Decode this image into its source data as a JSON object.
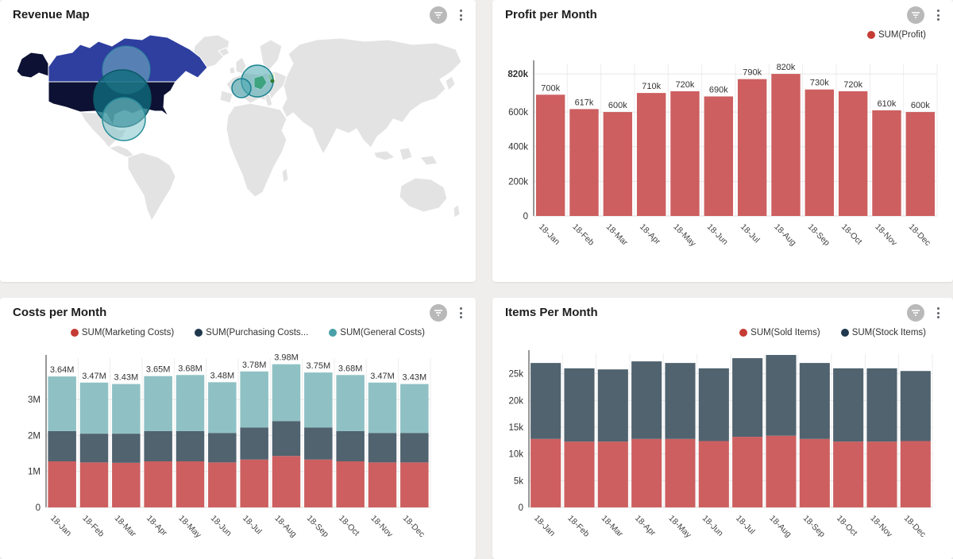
{
  "app": {
    "background": "#efeeec",
    "card_bg": "#ffffff"
  },
  "panels": [
    {
      "id": "revenue-map",
      "title": "Revenue Map"
    },
    {
      "id": "profit",
      "title": "Profit per Month",
      "legend": [
        {
          "label": "SUM(Profit)",
          "color": "#c53c35"
        }
      ]
    },
    {
      "id": "costs",
      "title": "Costs per Month",
      "legend": [
        {
          "label": "SUM(Marketing Costs)",
          "color": "#c53c35"
        },
        {
          "label": "SUM(Purchasing Costs...",
          "color": "#20384e"
        },
        {
          "label": "SUM(General Costs)",
          "color": "#4aa0a8"
        }
      ]
    },
    {
      "id": "items",
      "title": "Items Per Month",
      "legend": [
        {
          "label": "SUM(Sold Items)",
          "color": "#c53c35"
        },
        {
          "label": "SUM(Stock Items)",
          "color": "#20384e"
        }
      ]
    }
  ],
  "map": {
    "colors": {
      "land": "#e3e3e3",
      "border": "#ffffff",
      "usa": "#0d1133",
      "canada": "#2e3f9f",
      "germany": "#2f9e44",
      "poland": "#cde39b",
      "bubble_dark": "#0f6b7d",
      "bubble_light": "#7fc4cb",
      "bubble_mid": "#4aa7b0",
      "bubble_stroke": "#17818f",
      "dot_green": "#2f7a33"
    },
    "highlighted_regions": [
      "United States",
      "Canada",
      "Germany"
    ],
    "bubble_locations": [
      "Central USA",
      "Southern USA",
      "Hudson Bay Canada",
      "Central Europe",
      "France"
    ]
  },
  "chart_data": [
    {
      "id": "profit",
      "type": "bar",
      "title": "Profit per Month",
      "categories": [
        "18-Jan",
        "18-Feb",
        "18-Mar",
        "18-Apr",
        "18-May",
        "18-Jun",
        "18-Jul",
        "18-Aug",
        "18-Sep",
        "18-Oct",
        "18-Nov",
        "18-Dec"
      ],
      "series": [
        {
          "name": "SUM(Profit)",
          "color": "#cd5f60",
          "values": [
            700000,
            617000,
            600000,
            710000,
            720000,
            690000,
            790000,
            820000,
            730000,
            720000,
            610000,
            600000
          ]
        }
      ],
      "bar_labels": [
        "700k",
        "617k",
        "600k",
        "710k",
        "720k",
        "690k",
        "790k",
        "820k",
        "730k",
        "720k",
        "610k",
        "600k"
      ],
      "ylim": [
        0,
        880000
      ],
      "yticks": [
        {
          "value": 0,
          "label": "0"
        },
        {
          "value": 200000,
          "label": "200k"
        },
        {
          "value": 400000,
          "label": "400k"
        },
        {
          "value": 600000,
          "label": "600k"
        },
        {
          "value": 820000,
          "label": "820k",
          "bold": true
        }
      ],
      "legend_position": "top-right",
      "grid": true
    },
    {
      "id": "costs",
      "type": "bar",
      "stacked": true,
      "title": "Costs per Month",
      "categories": [
        "18-Jan",
        "18-Feb",
        "18-Mar",
        "18-Apr",
        "18-May",
        "18-Jun",
        "18-Jul",
        "18-Aug",
        "18-Sep",
        "18-Oct",
        "18-Nov",
        "18-Dec"
      ],
      "series": [
        {
          "name": "SUM(Marketing Costs)",
          "color": "#cd5f60",
          "values": [
            1280000,
            1250000,
            1240000,
            1280000,
            1280000,
            1250000,
            1330000,
            1430000,
            1330000,
            1280000,
            1250000,
            1250000
          ]
        },
        {
          "name": "SUM(Purchasing Costs...",
          "color": "#50636f",
          "values": [
            840000,
            800000,
            810000,
            840000,
            840000,
            820000,
            890000,
            970000,
            890000,
            840000,
            820000,
            820000
          ]
        },
        {
          "name": "SUM(General Costs)",
          "color": "#8fc1c4",
          "values": [
            1520000,
            1420000,
            1380000,
            1530000,
            1560000,
            1410000,
            1560000,
            1580000,
            1530000,
            1560000,
            1400000,
            1360000
          ]
        }
      ],
      "bar_labels": [
        "3.64M",
        "3.47M",
        "3.43M",
        "3.65M",
        "3.68M",
        "3.48M",
        "3.78M",
        "3.98M",
        "3.75M",
        "3.68M",
        "3.47M",
        "3.43M"
      ],
      "ylim": [
        0,
        4150000
      ],
      "yticks": [
        {
          "value": 0,
          "label": "0"
        },
        {
          "value": 1000000,
          "label": "1M"
        },
        {
          "value": 2000000,
          "label": "2M"
        },
        {
          "value": 3000000,
          "label": "3M"
        }
      ],
      "legend_position": "top",
      "grid": true
    },
    {
      "id": "items",
      "type": "bar",
      "stacked": true,
      "title": "Items Per Month",
      "categories": [
        "18-Jan",
        "18-Feb",
        "18-Mar",
        "18-Apr",
        "18-May",
        "18-Jun",
        "18-Jul",
        "18-Aug",
        "18-Sep",
        "18-Oct",
        "18-Nov",
        "18-Dec"
      ],
      "series": [
        {
          "name": "SUM(Sold Items)",
          "color": "#cd5f60",
          "values": [
            12800,
            12300,
            12300,
            12800,
            12800,
            12400,
            13200,
            13400,
            12800,
            12300,
            12300,
            12400
          ]
        },
        {
          "name": "SUM(Stock Items)",
          "color": "#50636f",
          "values": [
            14200,
            13700,
            13500,
            14500,
            14200,
            13600,
            14700,
            15100,
            14200,
            13700,
            13700,
            13100
          ]
        }
      ],
      "bar_labels": null,
      "ylim": [
        0,
        28800
      ],
      "yticks": [
        {
          "value": 0,
          "label": "0"
        },
        {
          "value": 5000,
          "label": "5k"
        },
        {
          "value": 10000,
          "label": "10k"
        },
        {
          "value": 15000,
          "label": "15k"
        },
        {
          "value": 20000,
          "label": "20k"
        },
        {
          "value": 25000,
          "label": "25k"
        }
      ],
      "legend_position": "top-right",
      "grid": true
    }
  ]
}
